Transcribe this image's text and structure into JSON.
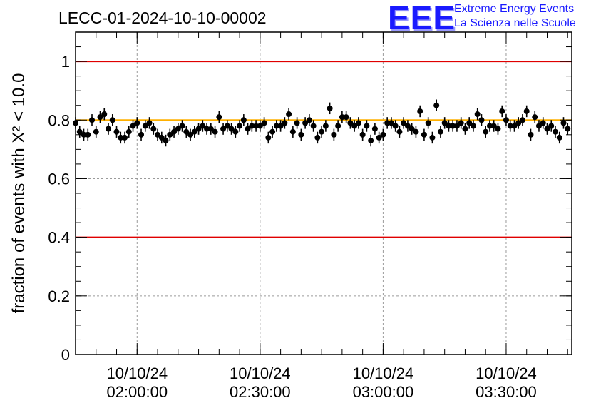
{
  "title": "LECC-01-2024-10-10-00002",
  "logo": {
    "mark": "EEE",
    "line1": "Extreme Energy Events",
    "line2": "La Scienza nelle Scuole",
    "color": "#1a1aff"
  },
  "chart_data": {
    "type": "scatter",
    "title": "LECC-01-2024-10-10-00002",
    "ylabel": "fraction of events with Χ² < 10.0",
    "xlabel": "",
    "ylim": [
      0,
      1.1
    ],
    "xlim": [
      "10/10/24 01:45:00",
      "10/10/24 03:46:00"
    ],
    "grid": true,
    "y_ticks": [
      "0",
      "0.2",
      "0.4",
      "0.6",
      "0.8",
      "1"
    ],
    "x_ticks": [
      {
        "date": "10/10/24",
        "time": "02:00:00"
      },
      {
        "date": "10/10/24",
        "time": "02:30:00"
      },
      {
        "date": "10/10/24",
        "time": "03:00:00"
      },
      {
        "date": "10/10/24",
        "time": "03:30:00"
      }
    ],
    "reference_lines": [
      {
        "y": 1.0,
        "color": "#e00000"
      },
      {
        "y": 0.4,
        "color": "#e00000"
      },
      {
        "y": 0.8,
        "color": "#ffb000"
      }
    ],
    "series": [
      {
        "marker_color": "#000000",
        "x_start": "01:45:00",
        "x_step_seconds": 60,
        "values": [
          0.79,
          0.76,
          0.75,
          0.75,
          0.8,
          0.76,
          0.81,
          0.82,
          0.77,
          0.8,
          0.76,
          0.74,
          0.74,
          0.76,
          0.78,
          0.79,
          0.75,
          0.78,
          0.79,
          0.77,
          0.75,
          0.74,
          0.73,
          0.75,
          0.76,
          0.77,
          0.78,
          0.76,
          0.75,
          0.76,
          0.77,
          0.78,
          0.77,
          0.77,
          0.76,
          0.81,
          0.77,
          0.78,
          0.77,
          0.76,
          0.78,
          0.8,
          0.77,
          0.78,
          0.78,
          0.78,
          0.79,
          0.74,
          0.76,
          0.78,
          0.78,
          0.79,
          0.82,
          0.76,
          0.79,
          0.75,
          0.79,
          0.8,
          0.78,
          0.74,
          0.76,
          0.78,
          0.84,
          0.75,
          0.78,
          0.81,
          0.81,
          0.79,
          0.78,
          0.79,
          0.75,
          0.78,
          0.73,
          0.77,
          0.74,
          0.75,
          0.79,
          0.79,
          0.78,
          0.76,
          0.79,
          0.78,
          0.77,
          0.76,
          0.83,
          0.75,
          0.79,
          0.74,
          0.85,
          0.76,
          0.79,
          0.78,
          0.78,
          0.78,
          0.79,
          0.77,
          0.79,
          0.78,
          0.82,
          0.8,
          0.76,
          0.78,
          0.78,
          0.77,
          0.83,
          0.8,
          0.78,
          0.78,
          0.79,
          0.8,
          0.83,
          0.75,
          0.81,
          0.78,
          0.79,
          0.77,
          0.78,
          0.76,
          0.74,
          0.79,
          0.77
        ],
        "errors": [
          0.02,
          0.02,
          0.02,
          0.02,
          0.02,
          0.02,
          0.02,
          0.02,
          0.02,
          0.02,
          0.02,
          0.02,
          0.02,
          0.02,
          0.02,
          0.02,
          0.02,
          0.02,
          0.02,
          0.02,
          0.02,
          0.02,
          0.02,
          0.02,
          0.02,
          0.02,
          0.02,
          0.02,
          0.02,
          0.02,
          0.02,
          0.02,
          0.02,
          0.02,
          0.02,
          0.02,
          0.02,
          0.02,
          0.02,
          0.02,
          0.02,
          0.02,
          0.02,
          0.02,
          0.02,
          0.02,
          0.02,
          0.02,
          0.02,
          0.02,
          0.02,
          0.02,
          0.02,
          0.02,
          0.02,
          0.02,
          0.02,
          0.02,
          0.02,
          0.02,
          0.02,
          0.02,
          0.02,
          0.02,
          0.02,
          0.02,
          0.02,
          0.02,
          0.02,
          0.02,
          0.02,
          0.02,
          0.02,
          0.02,
          0.02,
          0.02,
          0.02,
          0.02,
          0.02,
          0.02,
          0.02,
          0.02,
          0.02,
          0.02,
          0.02,
          0.02,
          0.02,
          0.02,
          0.02,
          0.02,
          0.02,
          0.02,
          0.02,
          0.02,
          0.02,
          0.02,
          0.02,
          0.02,
          0.02,
          0.02,
          0.02,
          0.02,
          0.02,
          0.02,
          0.02,
          0.02,
          0.02,
          0.02,
          0.02,
          0.02,
          0.02,
          0.02,
          0.02,
          0.02,
          0.02,
          0.02,
          0.02,
          0.02,
          0.02,
          0.02,
          0.02
        ]
      }
    ]
  }
}
